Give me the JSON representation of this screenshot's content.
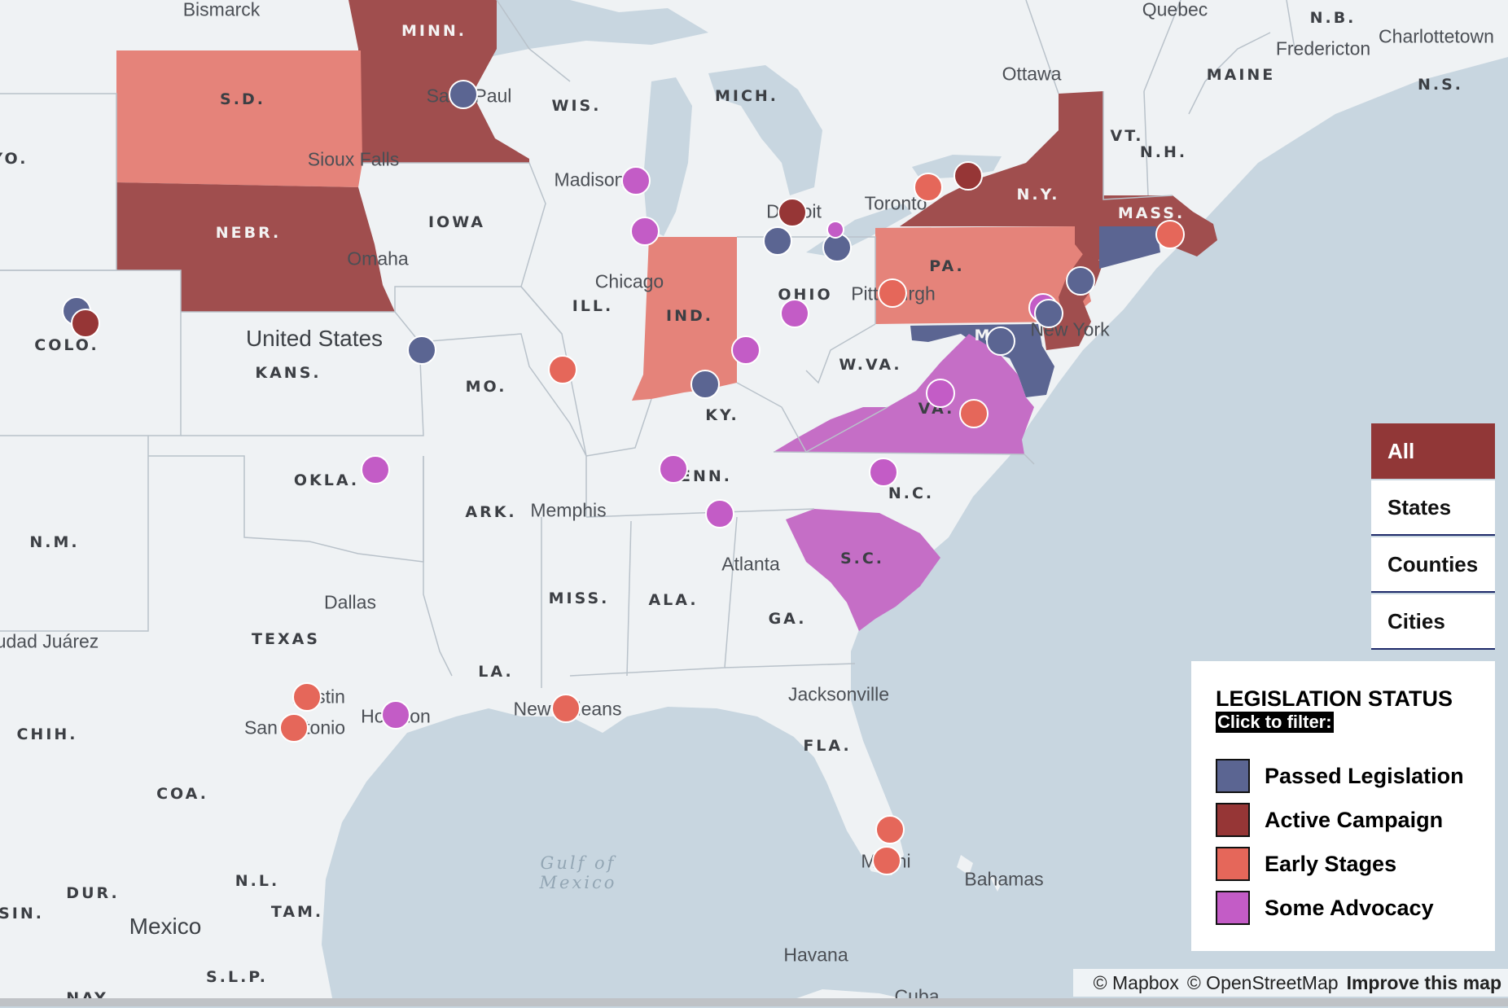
{
  "colors": {
    "passed": "#5b6592",
    "active": "#963636",
    "early": "#e5675a",
    "advocacy": "#c35cc6",
    "water": "#c8d6e0",
    "land": "#eff2f4"
  },
  "filters": [
    {
      "label": "All",
      "active": true
    },
    {
      "label": "States",
      "active": false
    },
    {
      "label": "Counties",
      "active": false
    },
    {
      "label": "Cities",
      "active": false
    }
  ],
  "legend": {
    "title": "LEGISLATION STATUS",
    "subtitle": "Click to filter:",
    "items": [
      {
        "label": "Passed Legislation",
        "color": "#5b6592"
      },
      {
        "label": "Active Campaign",
        "color": "#963636"
      },
      {
        "label": "Early Stages",
        "color": "#e5675a"
      },
      {
        "label": "Some Advocacy",
        "color": "#c35cc6"
      }
    ]
  },
  "attribution": {
    "mapbox": "© Mapbox",
    "osm": "© OpenStreetMap",
    "improve": "Improve this map"
  },
  "state_labels": {
    "minn": "MINN.",
    "sd": "S.D.",
    "wy": "YO.",
    "nebr": "NEBR.",
    "iowa": "IOWA",
    "wis": "WIS.",
    "mich": "MICH.",
    "colo": "COLO.",
    "kans": "KANS.",
    "mo": "MO.",
    "ill": "ILL.",
    "ind": "IND.",
    "ohio": "OHIO",
    "pa": "PA.",
    "ny": "N.Y.",
    "vt": "VT.",
    "nh": "N.H.",
    "maine": "MAINE",
    "mass": "MASS.",
    "nb": "N.B.",
    "ns": "N.S.",
    "md": "MD.",
    "wva": "W.VA.",
    "va": "VA.",
    "ky": "KY.",
    "tenn": "TENN.",
    "nc": "N.C.",
    "okla": "OKLA.",
    "nm": "N.M.",
    "ark": "ARK.",
    "sc": "S.C.",
    "miss": "MISS.",
    "ala": "ALA.",
    "ga": "GA.",
    "texas": "TEXAS",
    "la": "LA.",
    "fla": "FLA.",
    "chih": "CHIH.",
    "coa": "COA.",
    "dur": "DUR.",
    "nl": "N.L.",
    "tam": "TAM.",
    "sin": "SIN.",
    "slp": "S.L.P.",
    "nay": "NAY"
  },
  "city_labels": {
    "bismarck": "Bismarck",
    "quebec": "Quebec",
    "fredericton": "Fredericton",
    "charlottetown": "Charlottetown",
    "ottawa": "Ottawa",
    "saint_paul": "Saint Paul",
    "sioux_falls": "Sioux Falls",
    "madison": "Madison",
    "detroit": "Detroit",
    "toronto": "Toronto",
    "chicago": "Chicago",
    "omaha": "Omaha",
    "pittsburgh": "Pittsburgh",
    "new_york": "New York",
    "memphis": "Memphis",
    "atlanta": "Atlanta",
    "dallas": "Dallas",
    "ciudad_juarez": "udad Juárez",
    "austin": "Austin",
    "san_antonio": "San Antonio",
    "houston": "Houston",
    "new_orleans": "New Orleans",
    "jacksonville": "Jacksonville",
    "miami": "Miami",
    "bahamas": "Bahamas",
    "havana": "Havana",
    "cuba": "Cuba"
  },
  "country_labels": {
    "united_states": "United States",
    "mexico": "Mexico"
  },
  "water_labels": {
    "gulf": "Gulf of Mexico"
  },
  "markers": [
    {
      "name": "saint-paul",
      "status": "passed"
    },
    {
      "name": "madison",
      "status": "advocacy"
    },
    {
      "name": "chicago-north",
      "status": "advocacy"
    },
    {
      "name": "detroit",
      "status": "active"
    },
    {
      "name": "detroit-west",
      "status": "passed"
    },
    {
      "name": "ohio-lake",
      "status": "passed"
    },
    {
      "name": "ohio-lake-small",
      "status": "advocacy"
    },
    {
      "name": "toronto-east",
      "status": "early"
    },
    {
      "name": "ny-north",
      "status": "active"
    },
    {
      "name": "boston",
      "status": "early"
    },
    {
      "name": "new-haven",
      "status": "passed"
    },
    {
      "name": "nj-north",
      "status": "advocacy"
    },
    {
      "name": "new-york",
      "status": "passed"
    },
    {
      "name": "pittsburgh",
      "status": "early"
    },
    {
      "name": "columbus",
      "status": "advocacy"
    },
    {
      "name": "cincinnati",
      "status": "advocacy"
    },
    {
      "name": "louisville",
      "status": "passed"
    },
    {
      "name": "dc",
      "status": "passed"
    },
    {
      "name": "virginia-north",
      "status": "advocacy"
    },
    {
      "name": "richmond",
      "status": "early"
    },
    {
      "name": "kansas-city",
      "status": "passed"
    },
    {
      "name": "st-louis",
      "status": "early"
    },
    {
      "name": "denver-passed",
      "status": "passed"
    },
    {
      "name": "denver-active",
      "status": "active"
    },
    {
      "name": "tulsa",
      "status": "advocacy"
    },
    {
      "name": "nashville",
      "status": "advocacy"
    },
    {
      "name": "durham",
      "status": "advocacy"
    },
    {
      "name": "chattanooga",
      "status": "advocacy"
    },
    {
      "name": "austin",
      "status": "early"
    },
    {
      "name": "san-antonio",
      "status": "early"
    },
    {
      "name": "houston",
      "status": "advocacy"
    },
    {
      "name": "new-orleans",
      "status": "early"
    },
    {
      "name": "fort-lauderdale",
      "status": "early"
    },
    {
      "name": "miami",
      "status": "early"
    }
  ]
}
